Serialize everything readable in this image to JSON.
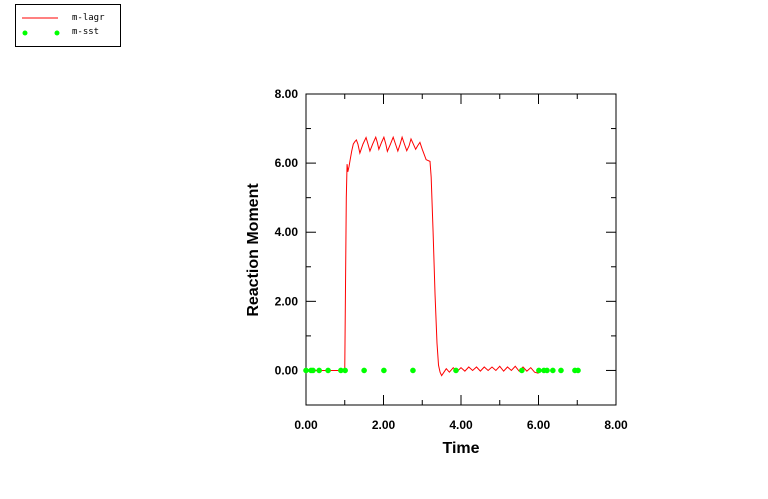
{
  "chart_data": {
    "type": "line",
    "title": "",
    "xlabel": "Time",
    "ylabel": "Reaction Moment",
    "xlim": [
      0,
      8
    ],
    "ylim": [
      -1,
      8
    ],
    "xticks": [
      "0.00",
      "2.00",
      "4.00",
      "6.00",
      "8.00"
    ],
    "xtick_values": [
      0,
      2,
      4,
      6,
      8
    ],
    "yticks": [
      "0.00",
      "2.00",
      "4.00",
      "6.00",
      "8.00"
    ],
    "ytick_values": [
      0,
      2,
      4,
      6,
      8
    ],
    "legend_position": "top-left",
    "series": [
      {
        "name": "m-lagr",
        "style": "line",
        "color": "#ff0000",
        "x": [
          0,
          1.0,
          1.02,
          1.04,
          1.06,
          1.08,
          1.11,
          1.14,
          1.18,
          1.22,
          1.26,
          1.3,
          1.34,
          1.39,
          1.47,
          1.55,
          1.6,
          1.65,
          1.72,
          1.8,
          1.84,
          1.88,
          1.95,
          2.01,
          2.06,
          2.1,
          2.18,
          2.25,
          2.31,
          2.37,
          2.43,
          2.48,
          2.54,
          2.6,
          2.66,
          2.71,
          2.77,
          2.83,
          2.88,
          2.94,
          3.0,
          3.05,
          3.1,
          3.2,
          3.23,
          3.28,
          3.33,
          3.38,
          3.42,
          3.46,
          3.5,
          3.56,
          3.62,
          3.7,
          3.8,
          3.9,
          4.0,
          4.1,
          4.2,
          4.3,
          4.4,
          4.5,
          4.6,
          4.7,
          4.8,
          4.9,
          5.0,
          5.1,
          5.2,
          5.3,
          5.4,
          5.5,
          5.6,
          5.7,
          5.8,
          5.9,
          6.0
        ],
        "y": [
          0,
          0,
          2.5,
          5.0,
          5.97,
          5.75,
          5.9,
          6.1,
          6.35,
          6.55,
          6.62,
          6.67,
          6.55,
          6.29,
          6.55,
          6.74,
          6.55,
          6.35,
          6.55,
          6.75,
          6.6,
          6.4,
          6.6,
          6.75,
          6.55,
          6.34,
          6.55,
          6.75,
          6.55,
          6.35,
          6.55,
          6.75,
          6.55,
          6.36,
          6.5,
          6.7,
          6.55,
          6.4,
          6.5,
          6.6,
          6.4,
          6.25,
          6.1,
          6.05,
          5.6,
          4.0,
          2.2,
          0.8,
          0.15,
          -0.05,
          -0.15,
          -0.05,
          0.05,
          -0.05,
          0.08,
          -0.03,
          0.08,
          -0.02,
          0.1,
          0.0,
          0.1,
          -0.02,
          0.1,
          0.0,
          0.1,
          0.0,
          0.12,
          -0.02,
          0.1,
          0.0,
          0.12,
          -0.02,
          0.1,
          -0.02,
          0.08,
          -0.05,
          -0.08
        ]
      },
      {
        "name": "m-sst",
        "style": "markers",
        "color": "#00ff00",
        "x": [
          0,
          0.13,
          0.18,
          0.34,
          0.57,
          0.9,
          1.01,
          1.5,
          2.01,
          2.76,
          3.87,
          5.57,
          6.01,
          6.14,
          6.22,
          6.37,
          6.58,
          6.94,
          7.02
        ],
        "y": [
          0,
          0,
          0,
          0,
          0,
          0,
          0,
          0,
          0,
          0,
          0,
          0,
          0,
          0,
          0,
          0,
          0,
          0,
          0
        ]
      }
    ]
  }
}
